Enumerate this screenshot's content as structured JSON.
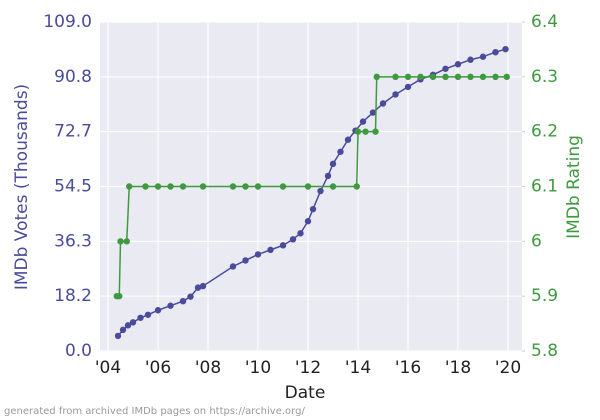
{
  "chart_data": {
    "type": "line",
    "x_label": "Date",
    "y_label": "IMDb Votes (Thousands)",
    "y2_label": "IMDb Rating",
    "footnote": "generated from archived IMDb pages on https://archive.org/",
    "xlim": [
      2003.68,
      2020.56
    ],
    "xticks": [
      {
        "value": 2004,
        "label": "'04"
      },
      {
        "value": 2006,
        "label": "'06"
      },
      {
        "value": 2008,
        "label": "'08"
      },
      {
        "value": 2010,
        "label": "'10"
      },
      {
        "value": 2012,
        "label": "'12"
      },
      {
        "value": 2014,
        "label": "'14"
      },
      {
        "value": 2016,
        "label": "'16"
      },
      {
        "value": 2018,
        "label": "'18"
      },
      {
        "value": 2020,
        "label": "'20"
      }
    ],
    "ylim": [
      0,
      109
    ],
    "yticks": [
      {
        "value": 0,
        "label": "0.0"
      },
      18.2,
      36.3,
      54.5,
      72.7,
      90.8,
      {
        "value": 109,
        "label": "109.0"
      }
    ],
    "y2lim": [
      5.8,
      6.4
    ],
    "y2ticks": [
      5.8,
      5.9,
      6.0,
      6.1,
      6.2,
      6.3,
      6.4
    ],
    "grid": true,
    "series": [
      {
        "name": "IMDb Votes (Thousands)",
        "color": "#4b4b9b",
        "x": [
          2004.4,
          2004.6,
          2004.8,
          2005.0,
          2005.3,
          2005.6,
          2006.0,
          2006.5,
          2007.0,
          2007.3,
          2007.6,
          2007.8,
          2009.0,
          2009.5,
          2010.0,
          2010.5,
          2011.0,
          2011.4,
          2011.7,
          2012.0,
          2012.2,
          2012.5,
          2012.8,
          2013.0,
          2013.3,
          2013.6,
          2013.9,
          2014.2,
          2014.6,
          2015.0,
          2015.5,
          2016.0,
          2016.5,
          2017.0,
          2017.5,
          2018.0,
          2018.5,
          2019.0,
          2019.5,
          2019.9
        ],
        "values": [
          5,
          7,
          8.5,
          9.5,
          11,
          12,
          13.5,
          15,
          16.5,
          18,
          21,
          21.5,
          28,
          30,
          32,
          33.5,
          35,
          37,
          39,
          43,
          47,
          53,
          58,
          62,
          66,
          70,
          73,
          76,
          79,
          82,
          85,
          87.5,
          90,
          91.5,
          93.5,
          95,
          96.5,
          97.5,
          99,
          100
        ]
      },
      {
        "name": "IMDb Rating",
        "color": "#3f9a3f",
        "axis": "y2",
        "x": [
          2004.35,
          2004.45,
          2004.5,
          2004.75,
          2004.85,
          2005.5,
          2006.0,
          2006.5,
          2007.0,
          2007.8,
          2009.0,
          2009.5,
          2010.0,
          2011.0,
          2012.0,
          2013.0,
          2013.95,
          2014.0,
          2014.3,
          2014.7,
          2014.75,
          2015.5,
          2016.0,
          2016.5,
          2017.0,
          2017.5,
          2018.0,
          2018.5,
          2019.0,
          2019.5,
          2019.95
        ],
        "values": [
          5.9,
          5.9,
          6.0,
          6.0,
          6.1,
          6.1,
          6.1,
          6.1,
          6.1,
          6.1,
          6.1,
          6.1,
          6.1,
          6.1,
          6.1,
          6.1,
          6.1,
          6.2,
          6.2,
          6.2,
          6.3,
          6.3,
          6.3,
          6.3,
          6.3,
          6.3,
          6.3,
          6.3,
          6.3,
          6.3,
          6.3
        ]
      }
    ]
  }
}
